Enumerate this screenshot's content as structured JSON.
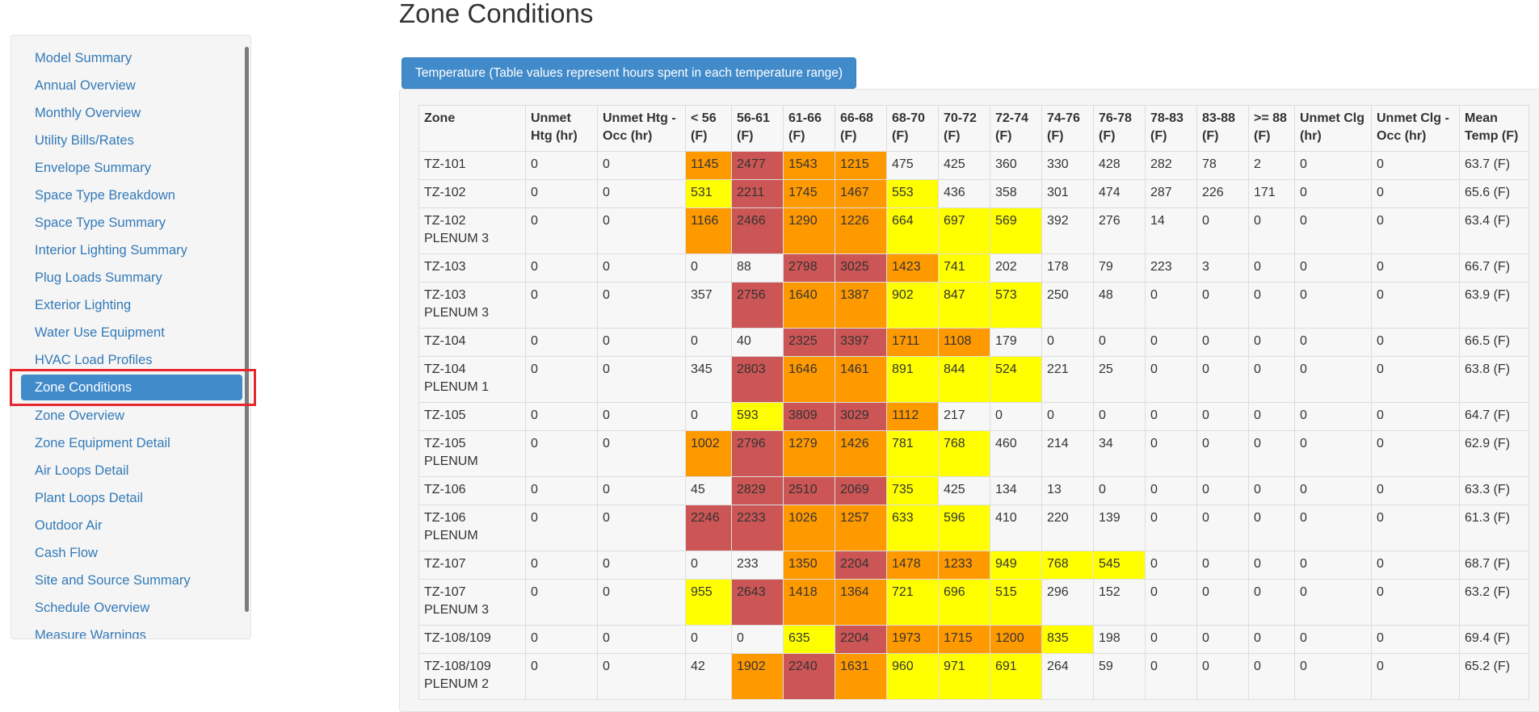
{
  "page_title": "Zone Conditions",
  "colors": {
    "accent": "#428bca",
    "link": "#337ab7",
    "highlight_box": "#e8262e",
    "heat_low": "#ffff00",
    "heat_mid": "#ff9900",
    "heat_high": "#cc5555"
  },
  "sidebar": {
    "items": [
      "Model Summary",
      "Annual Overview",
      "Monthly Overview",
      "Utility Bills/Rates",
      "Envelope Summary",
      "Space Type Breakdown",
      "Space Type Summary",
      "Interior Lighting Summary",
      "Plug Loads Summary",
      "Exterior Lighting",
      "Water Use Equipment",
      "HVAC Load Profiles",
      "Zone Conditions",
      "Zone Overview",
      "Zone Equipment Detail",
      "Air Loops Detail",
      "Plant Loops Detail",
      "Outdoor Air",
      "Cash Flow",
      "Site and Source Summary",
      "Schedule Overview",
      "Measure Warnings"
    ],
    "active_item": "Zone Conditions"
  },
  "temperature_tab": {
    "label": "Temperature (Table values represent hours spent in each temperature range)"
  },
  "table": {
    "headers": [
      "Zone",
      "Unmet Htg (hr)",
      "Unmet Htg - Occ (hr)",
      "< 56 (F)",
      "56-61 (F)",
      "61-66 (F)",
      "66-68 (F)",
      "68-70 (F)",
      "70-72 (F)",
      "72-74 (F)",
      "74-76 (F)",
      "76-78 (F)",
      "78-83 (F)",
      "83-88 (F)",
      ">= 88 (F)",
      "Unmet Clg (hr)",
      "Unmet Clg - Occ (hr)",
      "Mean Temp (F)"
    ],
    "rows": [
      {
        "cells": [
          "TZ-101",
          "0",
          "0",
          "1145",
          "2477",
          "1543",
          "1215",
          "475",
          "425",
          "360",
          "330",
          "428",
          "282",
          "78",
          "2",
          "0",
          "0",
          "63.7 (F)"
        ],
        "heat": [
          "",
          "",
          "",
          "m",
          "h",
          "m",
          "m",
          "",
          "",
          "",
          "",
          "",
          "",
          "",
          "",
          "",
          "",
          ""
        ]
      },
      {
        "cells": [
          "TZ-102",
          "0",
          "0",
          "531",
          "2211",
          "1745",
          "1467",
          "553",
          "436",
          "358",
          "301",
          "474",
          "287",
          "226",
          "171",
          "0",
          "0",
          "65.6 (F)"
        ],
        "heat": [
          "",
          "",
          "",
          "l",
          "h",
          "m",
          "m",
          "l",
          "",
          "",
          "",
          "",
          "",
          "",
          "",
          "",
          "",
          ""
        ]
      },
      {
        "cells": [
          "TZ-102 PLENUM 3",
          "0",
          "0",
          "1166",
          "2466",
          "1290",
          "1226",
          "664",
          "697",
          "569",
          "392",
          "276",
          "14",
          "0",
          "0",
          "0",
          "0",
          "63.4 (F)"
        ],
        "heat": [
          "",
          "",
          "",
          "m",
          "h",
          "m",
          "m",
          "l",
          "l",
          "l",
          "",
          "",
          "",
          "",
          "",
          "",
          "",
          ""
        ]
      },
      {
        "cells": [
          "TZ-103",
          "0",
          "0",
          "0",
          "88",
          "2798",
          "3025",
          "1423",
          "741",
          "202",
          "178",
          "79",
          "223",
          "3",
          "0",
          "0",
          "0",
          "66.7 (F)"
        ],
        "heat": [
          "",
          "",
          "",
          "",
          "",
          "h",
          "h",
          "m",
          "l",
          "",
          "",
          "",
          "",
          "",
          "",
          "",
          "",
          ""
        ]
      },
      {
        "cells": [
          "TZ-103 PLENUM 3",
          "0",
          "0",
          "357",
          "2756",
          "1640",
          "1387",
          "902",
          "847",
          "573",
          "250",
          "48",
          "0",
          "0",
          "0",
          "0",
          "0",
          "63.9 (F)"
        ],
        "heat": [
          "",
          "",
          "",
          "",
          "h",
          "m",
          "m",
          "l",
          "l",
          "l",
          "",
          "",
          "",
          "",
          "",
          "",
          "",
          ""
        ]
      },
      {
        "cells": [
          "TZ-104",
          "0",
          "0",
          "0",
          "40",
          "2325",
          "3397",
          "1711",
          "1108",
          "179",
          "0",
          "0",
          "0",
          "0",
          "0",
          "0",
          "0",
          "66.5 (F)"
        ],
        "heat": [
          "",
          "",
          "",
          "",
          "",
          "h",
          "h",
          "m",
          "m",
          "",
          "",
          "",
          "",
          "",
          "",
          "",
          "",
          ""
        ]
      },
      {
        "cells": [
          "TZ-104 PLENUM 1",
          "0",
          "0",
          "345",
          "2803",
          "1646",
          "1461",
          "891",
          "844",
          "524",
          "221",
          "25",
          "0",
          "0",
          "0",
          "0",
          "0",
          "63.8 (F)"
        ],
        "heat": [
          "",
          "",
          "",
          "",
          "h",
          "m",
          "m",
          "l",
          "l",
          "l",
          "",
          "",
          "",
          "",
          "",
          "",
          "",
          ""
        ]
      },
      {
        "cells": [
          "TZ-105",
          "0",
          "0",
          "0",
          "593",
          "3809",
          "3029",
          "1112",
          "217",
          "0",
          "0",
          "0",
          "0",
          "0",
          "0",
          "0",
          "0",
          "64.7 (F)"
        ],
        "heat": [
          "",
          "",
          "",
          "",
          "l",
          "h",
          "h",
          "m",
          "",
          "",
          "",
          "",
          "",
          "",
          "",
          "",
          "",
          ""
        ]
      },
      {
        "cells": [
          "TZ-105 PLENUM",
          "0",
          "0",
          "1002",
          "2796",
          "1279",
          "1426",
          "781",
          "768",
          "460",
          "214",
          "34",
          "0",
          "0",
          "0",
          "0",
          "0",
          "62.9 (F)"
        ],
        "heat": [
          "",
          "",
          "",
          "m",
          "h",
          "m",
          "m",
          "l",
          "l",
          "",
          "",
          "",
          "",
          "",
          "",
          "",
          "",
          ""
        ]
      },
      {
        "cells": [
          "TZ-106",
          "0",
          "0",
          "45",
          "2829",
          "2510",
          "2069",
          "735",
          "425",
          "134",
          "13",
          "0",
          "0",
          "0",
          "0",
          "0",
          "0",
          "63.3 (F)"
        ],
        "heat": [
          "",
          "",
          "",
          "",
          "h",
          "h",
          "h",
          "l",
          "",
          "",
          "",
          "",
          "",
          "",
          "",
          "",
          "",
          ""
        ]
      },
      {
        "cells": [
          "TZ-106 PLENUM",
          "0",
          "0",
          "2246",
          "2233",
          "1026",
          "1257",
          "633",
          "596",
          "410",
          "220",
          "139",
          "0",
          "0",
          "0",
          "0",
          "0",
          "61.3 (F)"
        ],
        "heat": [
          "",
          "",
          "",
          "h",
          "h",
          "m",
          "m",
          "l",
          "l",
          "",
          "",
          "",
          "",
          "",
          "",
          "",
          "",
          ""
        ]
      },
      {
        "cells": [
          "TZ-107",
          "0",
          "0",
          "0",
          "233",
          "1350",
          "2204",
          "1478",
          "1233",
          "949",
          "768",
          "545",
          "0",
          "0",
          "0",
          "0",
          "0",
          "68.7 (F)"
        ],
        "heat": [
          "",
          "",
          "",
          "",
          "",
          "m",
          "h",
          "m",
          "m",
          "l",
          "l",
          "l",
          "",
          "",
          "",
          "",
          "",
          ""
        ]
      },
      {
        "cells": [
          "TZ-107 PLENUM 3",
          "0",
          "0",
          "955",
          "2643",
          "1418",
          "1364",
          "721",
          "696",
          "515",
          "296",
          "152",
          "0",
          "0",
          "0",
          "0",
          "0",
          "63.2 (F)"
        ],
        "heat": [
          "",
          "",
          "",
          "l",
          "h",
          "m",
          "m",
          "l",
          "l",
          "l",
          "",
          "",
          "",
          "",
          "",
          "",
          "",
          ""
        ]
      },
      {
        "cells": [
          "TZ-108/109",
          "0",
          "0",
          "0",
          "0",
          "635",
          "2204",
          "1973",
          "1715",
          "1200",
          "835",
          "198",
          "0",
          "0",
          "0",
          "0",
          "0",
          "69.4 (F)"
        ],
        "heat": [
          "",
          "",
          "",
          "",
          "",
          "l",
          "h",
          "m",
          "m",
          "m",
          "l",
          "",
          "",
          "",
          "",
          "",
          "",
          ""
        ]
      },
      {
        "cells": [
          "TZ-108/109 PLENUM 2",
          "0",
          "0",
          "42",
          "1902",
          "2240",
          "1631",
          "960",
          "971",
          "691",
          "264",
          "59",
          "0",
          "0",
          "0",
          "0",
          "0",
          "65.2 (F)"
        ],
        "heat": [
          "",
          "",
          "",
          "",
          "m",
          "h",
          "m",
          "l",
          "l",
          "l",
          "",
          "",
          "",
          "",
          "",
          "",
          "",
          ""
        ]
      }
    ]
  }
}
